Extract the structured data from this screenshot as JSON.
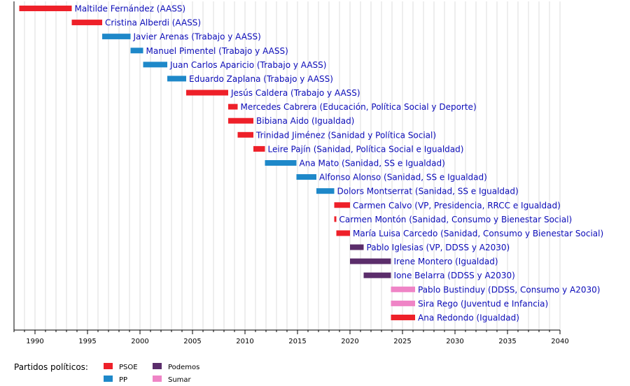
{
  "chart_data": {
    "type": "timeline",
    "x_range": [
      1988,
      2040
    ],
    "ticks": [
      1990,
      1995,
      2000,
      2005,
      2010,
      2015,
      2020,
      2025,
      2030,
      2035,
      2040
    ],
    "grid": true,
    "parties": {
      "PSOE": "#ee2029",
      "PP": "#1e88c9",
      "Podemos": "#5b2d6b",
      "Sumar": "#ef84c6"
    },
    "entries": [
      {
        "label": "Maltilde Fernández (AASS)",
        "party": "PSOE",
        "start": 1988.5,
        "end": 1993.5
      },
      {
        "label": "Cristina Alberdi (AASS)",
        "party": "PSOE",
        "start": 1993.5,
        "end": 1996.4
      },
      {
        "label": "Javier Arenas (Trabajo y AASS)",
        "party": "PP",
        "start": 1996.4,
        "end": 1999.1
      },
      {
        "label": "Manuel Pimentel (Trabajo y AASS)",
        "party": "PP",
        "start": 1999.1,
        "end": 2000.3
      },
      {
        "label": "Juan Carlos Aparicio (Trabajo y AASS)",
        "party": "PP",
        "start": 2000.3,
        "end": 2002.6
      },
      {
        "label": "Eduardo Zaplana (Trabajo y AASS)",
        "party": "PP",
        "start": 2002.6,
        "end": 2004.4
      },
      {
        "label": "Jesús Caldera (Trabajo y AASS)",
        "party": "PSOE",
        "start": 2004.4,
        "end": 2008.4
      },
      {
        "label": "Mercedes Cabrera (Educación, Política Social y Deporte)",
        "party": "PSOE",
        "start": 2008.4,
        "end": 2009.3
      },
      {
        "label": "Bibiana Aido (Igualdad)",
        "party": "PSOE",
        "start": 2008.4,
        "end": 2010.8
      },
      {
        "label": "Trinidad Jiménez (Sanidad y Política Social)",
        "party": "PSOE",
        "start": 2009.3,
        "end": 2010.8
      },
      {
        "label": "Leire Pajín (Sanidad, Política Social e Igualdad)",
        "party": "PSOE",
        "start": 2010.8,
        "end": 2011.9
      },
      {
        "label": "Ana Mato (Sanidad, SS e Igualdad)",
        "party": "PP",
        "start": 2011.9,
        "end": 2014.9
      },
      {
        "label": "Alfonso Alonso (Sanidad, SS e Igualdad)",
        "party": "PP",
        "start": 2014.9,
        "end": 2016.8
      },
      {
        "label": "Dolors Montserrat (Sanidad, SS e Igualdad)",
        "party": "PP",
        "start": 2016.8,
        "end": 2018.5
      },
      {
        "label": "Carmen Calvo (VP, Presidencia, RRCC e Igualdad)",
        "party": "PSOE",
        "start": 2018.5,
        "end": 2020.0
      },
      {
        "label": "Carmen Montón (Sanidad, Consumo y Bienestar Social)",
        "party": "PSOE",
        "start": 2018.5,
        "end": 2018.7
      },
      {
        "label": "María Luisa Carcedo (Sanidad, Consumo y Bienestar Social)",
        "party": "PSOE",
        "start": 2018.7,
        "end": 2020.0
      },
      {
        "label": "Pablo Iglesias (VP, DDSS y A2030)",
        "party": "Podemos",
        "start": 2020.0,
        "end": 2021.3
      },
      {
        "label": "Irene Montero (Igualdad)",
        "party": "Podemos",
        "start": 2020.0,
        "end": 2023.9
      },
      {
        "label": "Ione Belarra (DDSS y A2030)",
        "party": "Podemos",
        "start": 2021.3,
        "end": 2023.9
      },
      {
        "label": "Pablo Bustinduy (DDSS, Consumo y A2030)",
        "party": "Sumar",
        "start": 2023.9,
        "end": 2026.2
      },
      {
        "label": "Sira Rego (Juventud e Infancia)",
        "party": "Sumar",
        "start": 2023.9,
        "end": 2026.2
      },
      {
        "label": "Ana Redondo (Igualdad)",
        "party": "PSOE",
        "start": 2023.9,
        "end": 2026.2
      }
    ]
  },
  "legend": {
    "title": "Partidos políticos:",
    "items": [
      {
        "name": "PSOE",
        "color": "#ee2029"
      },
      {
        "name": "PP",
        "color": "#1e88c9"
      },
      {
        "name": "Podemos",
        "color": "#5b2d6b"
      },
      {
        "name": "Sumar",
        "color": "#ef84c6"
      }
    ]
  }
}
